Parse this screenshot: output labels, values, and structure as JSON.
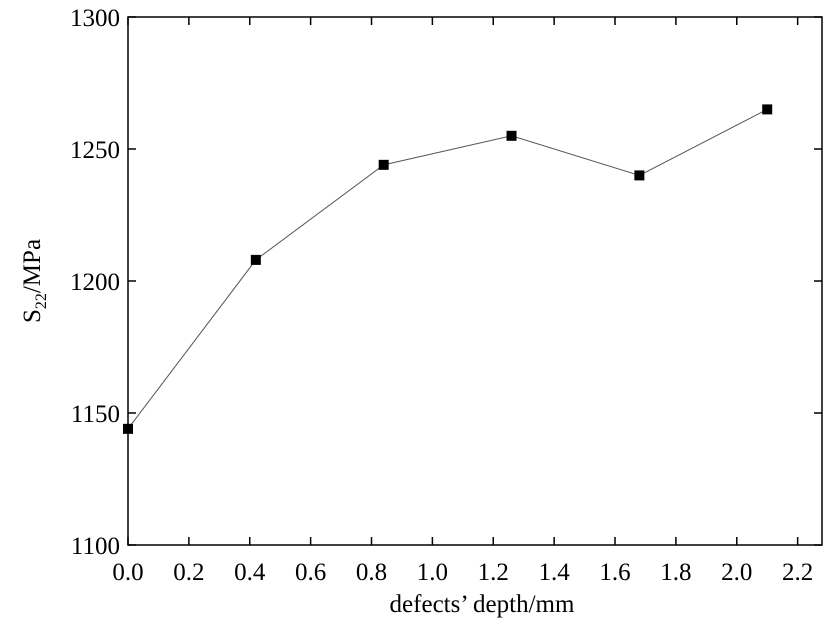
{
  "chart_data": {
    "type": "line",
    "x_label": "defects’ depth/mm",
    "y_label_parts": [
      "S",
      "22",
      "/MPa"
    ],
    "x": [
      0,
      0.42,
      0.84,
      1.26,
      1.68,
      2.1
    ],
    "series": [
      {
        "color": "#000000",
        "values": [
          1144,
          1208,
          1244,
          1255,
          1240,
          1265
        ]
      }
    ],
    "xlim": [
      0,
      2.28
    ],
    "ylim": [
      1100,
      1300
    ],
    "xticks": [
      {
        "value": 0,
        "label": "0.0"
      },
      {
        "value": 0.2,
        "label": "0.2"
      },
      {
        "value": 0.4,
        "label": "0.4"
      },
      {
        "value": 0.6,
        "label": "0.6"
      },
      {
        "value": 0.8,
        "label": "0.8"
      },
      {
        "value": 1.0,
        "label": "1.0"
      },
      {
        "value": 1.2,
        "label": "1.2"
      },
      {
        "value": 1.4,
        "label": "1.4"
      },
      {
        "value": 1.6,
        "label": "1.6"
      },
      {
        "value": 1.8,
        "label": "1.8"
      },
      {
        "value": 2.0,
        "label": "2.0"
      },
      {
        "value": 2.2,
        "label": "2.2"
      }
    ],
    "yticks": [
      1100,
      1150,
      1200,
      1250,
      1300
    ]
  }
}
